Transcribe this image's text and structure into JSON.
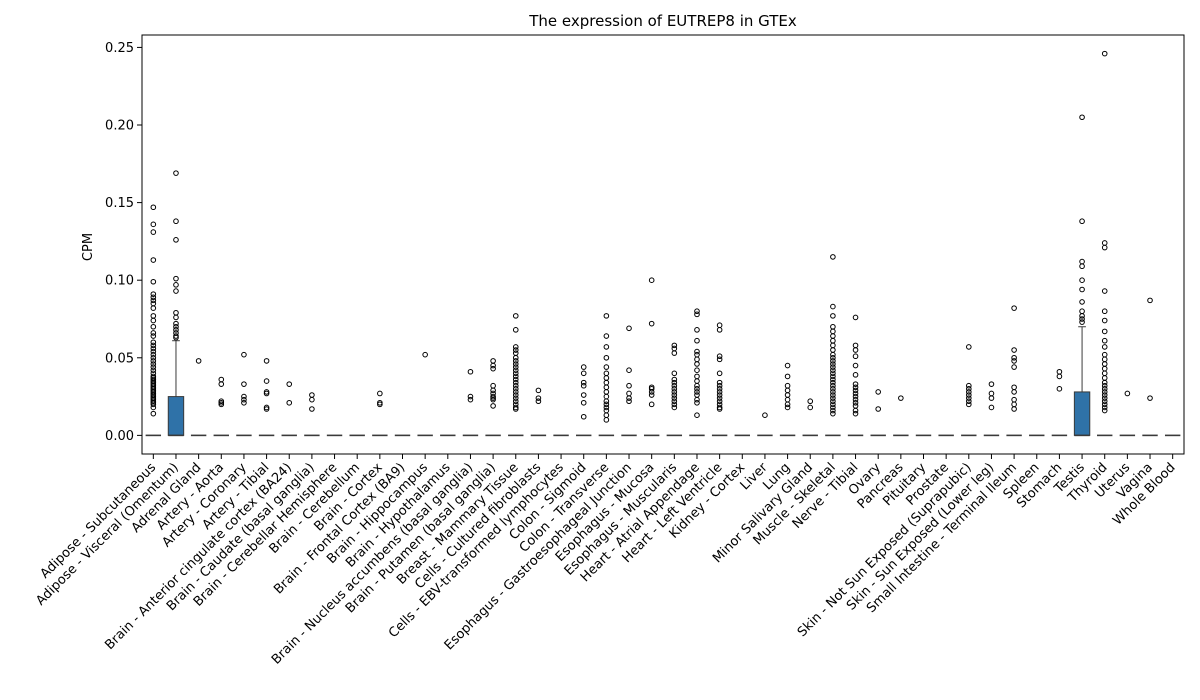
{
  "chart_data": {
    "type": "box",
    "title": "The expression of EUTREP8 in GTEx",
    "xlabel": "",
    "ylabel": "CPM",
    "ylim": [
      -0.012,
      0.258
    ],
    "yticks": [
      "0.00",
      "0.05",
      "0.10",
      "0.15",
      "0.20",
      "0.25"
    ],
    "box_color": "#2f72a8",
    "grid": false,
    "categories": [
      "Adipose - Subcutaneous",
      "Adipose - Visceral (Omentum)",
      "Adrenal Gland",
      "Artery - Aorta",
      "Artery - Coronary",
      "Artery - Tibial",
      "Brain - Anterior cingulate cortex (BA24)",
      "Brain - Caudate (basal ganglia)",
      "Brain - Cerebellar Hemisphere",
      "Brain - Cerebellum",
      "Brain - Cortex",
      "Brain - Frontal Cortex (BA9)",
      "Brain - Hippocampus",
      "Brain - Hypothalamus",
      "Brain - Nucleus accumbens (basal ganglia)",
      "Brain - Putamen (basal ganglia)",
      "Breast - Mammary Tissue",
      "Cells - Cultured fibroblasts",
      "Cells - EBV-transformed lymphocytes",
      "Colon - Sigmoid",
      "Colon - Transverse",
      "Esophagus - Gastroesophageal Junction",
      "Esophagus - Mucosa",
      "Esophagus - Muscularis",
      "Heart - Atrial Appendage",
      "Heart - Left Ventricle",
      "Kidney - Cortex",
      "Liver",
      "Lung",
      "Minor Salivary Gland",
      "Muscle - Skeletal",
      "Nerve - Tibial",
      "Ovary",
      "Pancreas",
      "Pituitary",
      "Prostate",
      "Skin - Not Sun Exposed (Suprapubic)",
      "Skin - Sun Exposed (Lower leg)",
      "Small Intestine - Terminal Ileum",
      "Spleen",
      "Stomach",
      "Testis",
      "Thyroid",
      "Uterus",
      "Vagina",
      "Whole Blood"
    ],
    "boxes": [
      {
        "q1": 0,
        "median": 0,
        "q3": 0,
        "whisker_low": 0,
        "whisker_high": 0,
        "outliers": [
          0.147,
          0.136,
          0.131,
          0.113,
          0.099,
          0.091,
          0.089,
          0.087,
          0.085,
          0.082,
          0.077,
          0.074,
          0.07,
          0.066,
          0.064,
          0.06,
          0.058,
          0.056,
          0.054,
          0.052,
          0.05,
          0.048,
          0.046,
          0.044,
          0.042,
          0.04,
          0.038,
          0.037,
          0.036,
          0.035,
          0.034,
          0.033,
          0.032,
          0.031,
          0.03,
          0.029,
          0.028,
          0.027,
          0.026,
          0.025,
          0.024,
          0.023,
          0.022,
          0.021,
          0.02,
          0.018,
          0.014
        ]
      },
      {
        "q1": 0,
        "median": 0,
        "q3": 0.025,
        "whisker_low": 0,
        "whisker_high": 0.061,
        "outliers": [
          0.169,
          0.138,
          0.126,
          0.101,
          0.097,
          0.093,
          0.079,
          0.076,
          0.072,
          0.07,
          0.068,
          0.066,
          0.064,
          0.063
        ]
      },
      {
        "q1": 0,
        "median": 0,
        "q3": 0,
        "whisker_low": 0,
        "whisker_high": 0,
        "outliers": [
          0.048
        ]
      },
      {
        "q1": 0,
        "median": 0,
        "q3": 0,
        "whisker_low": 0,
        "whisker_high": 0,
        "outliers": [
          0.036,
          0.033,
          0.022,
          0.021,
          0.02
        ]
      },
      {
        "q1": 0,
        "median": 0,
        "q3": 0,
        "whisker_low": 0,
        "whisker_high": 0,
        "outliers": [
          0.052,
          0.033,
          0.025,
          0.023,
          0.021
        ]
      },
      {
        "q1": 0,
        "median": 0,
        "q3": 0,
        "whisker_low": 0,
        "whisker_high": 0,
        "outliers": [
          0.048,
          0.035,
          0.028,
          0.027,
          0.018,
          0.017
        ]
      },
      {
        "q1": 0,
        "median": 0,
        "q3": 0,
        "whisker_low": 0,
        "whisker_high": 0,
        "outliers": [
          0.033,
          0.021
        ]
      },
      {
        "q1": 0,
        "median": 0,
        "q3": 0,
        "whisker_low": 0,
        "whisker_high": 0,
        "outliers": [
          0.026,
          0.023,
          0.017
        ]
      },
      {
        "q1": 0,
        "median": 0,
        "q3": 0,
        "whisker_low": 0,
        "whisker_high": 0,
        "outliers": []
      },
      {
        "q1": 0,
        "median": 0,
        "q3": 0,
        "whisker_low": 0,
        "whisker_high": 0,
        "outliers": []
      },
      {
        "q1": 0,
        "median": 0,
        "q3": 0,
        "whisker_low": 0,
        "whisker_high": 0,
        "outliers": [
          0.027,
          0.021,
          0.02
        ]
      },
      {
        "q1": 0,
        "median": 0,
        "q3": 0,
        "whisker_low": 0,
        "whisker_high": 0,
        "outliers": []
      },
      {
        "q1": 0,
        "median": 0,
        "q3": 0,
        "whisker_low": 0,
        "whisker_high": 0,
        "outliers": [
          0.052
        ]
      },
      {
        "q1": 0,
        "median": 0,
        "q3": 0,
        "whisker_low": 0,
        "whisker_high": 0,
        "outliers": []
      },
      {
        "q1": 0,
        "median": 0,
        "q3": 0,
        "whisker_low": 0,
        "whisker_high": 0,
        "outliers": [
          0.041,
          0.025,
          0.023
        ]
      },
      {
        "q1": 0,
        "median": 0,
        "q3": 0,
        "whisker_low": 0,
        "whisker_high": 0,
        "outliers": [
          0.048,
          0.045,
          0.043,
          0.032,
          0.029,
          0.027,
          0.025,
          0.024,
          0.023,
          0.019
        ]
      },
      {
        "q1": 0,
        "median": 0,
        "q3": 0,
        "whisker_low": 0,
        "whisker_high": 0,
        "outliers": [
          0.077,
          0.068,
          0.057,
          0.055,
          0.053,
          0.05,
          0.048,
          0.046,
          0.044,
          0.042,
          0.04,
          0.038,
          0.036,
          0.034,
          0.032,
          0.03,
          0.028,
          0.026,
          0.024,
          0.022,
          0.02,
          0.018,
          0.017
        ]
      },
      {
        "q1": 0,
        "median": 0,
        "q3": 0,
        "whisker_low": 0,
        "whisker_high": 0,
        "outliers": [
          0.029,
          0.024,
          0.022
        ]
      },
      {
        "q1": 0,
        "median": 0,
        "q3": 0,
        "whisker_low": 0,
        "whisker_high": 0,
        "outliers": []
      },
      {
        "q1": 0,
        "median": 0,
        "q3": 0,
        "whisker_low": 0,
        "whisker_high": 0,
        "outliers": [
          0.044,
          0.04,
          0.034,
          0.032,
          0.026,
          0.021,
          0.012
        ]
      },
      {
        "q1": 0,
        "median": 0,
        "q3": 0,
        "whisker_low": 0,
        "whisker_high": 0,
        "outliers": [
          0.077,
          0.064,
          0.057,
          0.05,
          0.044,
          0.04,
          0.037,
          0.034,
          0.031,
          0.028,
          0.025,
          0.022,
          0.02,
          0.018,
          0.016,
          0.013,
          0.01
        ]
      },
      {
        "q1": 0,
        "median": 0,
        "q3": 0,
        "whisker_low": 0,
        "whisker_high": 0,
        "outliers": [
          0.069,
          0.042,
          0.032,
          0.027,
          0.024,
          0.022
        ]
      },
      {
        "q1": 0,
        "median": 0,
        "q3": 0,
        "whisker_low": 0,
        "whisker_high": 0,
        "outliers": [
          0.1,
          0.072,
          0.031,
          0.03,
          0.028,
          0.026,
          0.02
        ]
      },
      {
        "q1": 0,
        "median": 0,
        "q3": 0,
        "whisker_low": 0,
        "whisker_high": 0,
        "outliers": [
          0.058,
          0.056,
          0.053,
          0.04,
          0.036,
          0.034,
          0.032,
          0.03,
          0.028,
          0.026,
          0.024,
          0.022,
          0.02,
          0.018
        ]
      },
      {
        "q1": 0,
        "median": 0,
        "q3": 0,
        "whisker_low": 0,
        "whisker_high": 0,
        "outliers": [
          0.08,
          0.078,
          0.068,
          0.061,
          0.054,
          0.052,
          0.049,
          0.046,
          0.042,
          0.038,
          0.035,
          0.032,
          0.03,
          0.028,
          0.026,
          0.023,
          0.021,
          0.013
        ]
      },
      {
        "q1": 0,
        "median": 0,
        "q3": 0,
        "whisker_low": 0,
        "whisker_high": 0,
        "outliers": [
          0.071,
          0.068,
          0.051,
          0.049,
          0.04,
          0.034,
          0.032,
          0.03,
          0.028,
          0.026,
          0.024,
          0.022,
          0.02,
          0.018,
          0.017
        ]
      },
      {
        "q1": 0,
        "median": 0,
        "q3": 0,
        "whisker_low": 0,
        "whisker_high": 0,
        "outliers": []
      },
      {
        "q1": 0,
        "median": 0,
        "q3": 0,
        "whisker_low": 0,
        "whisker_high": 0,
        "outliers": [
          0.013
        ]
      },
      {
        "q1": 0,
        "median": 0,
        "q3": 0,
        "whisker_low": 0,
        "whisker_high": 0,
        "outliers": [
          0.045,
          0.038,
          0.032,
          0.029,
          0.026,
          0.023,
          0.02,
          0.018
        ]
      },
      {
        "q1": 0,
        "median": 0,
        "q3": 0,
        "whisker_low": 0,
        "whisker_high": 0,
        "outliers": [
          0.022,
          0.018
        ]
      },
      {
        "q1": 0,
        "median": 0,
        "q3": 0,
        "whisker_low": 0,
        "whisker_high": 0,
        "outliers": [
          0.115,
          0.083,
          0.077,
          0.07,
          0.067,
          0.064,
          0.061,
          0.058,
          0.055,
          0.052,
          0.05,
          0.048,
          0.046,
          0.044,
          0.042,
          0.04,
          0.038,
          0.036,
          0.034,
          0.032,
          0.03,
          0.028,
          0.026,
          0.024,
          0.022,
          0.02,
          0.018,
          0.016,
          0.014
        ]
      },
      {
        "q1": 0,
        "median": 0,
        "q3": 0,
        "whisker_low": 0,
        "whisker_high": 0,
        "outliers": [
          0.076,
          0.058,
          0.055,
          0.051,
          0.045,
          0.039,
          0.033,
          0.031,
          0.029,
          0.027,
          0.025,
          0.023,
          0.021,
          0.019,
          0.016,
          0.014
        ]
      },
      {
        "q1": 0,
        "median": 0,
        "q3": 0,
        "whisker_low": 0,
        "whisker_high": 0,
        "outliers": [
          0.028,
          0.017
        ]
      },
      {
        "q1": 0,
        "median": 0,
        "q3": 0,
        "whisker_low": 0,
        "whisker_high": 0,
        "outliers": [
          0.024
        ]
      },
      {
        "q1": 0,
        "median": 0,
        "q3": 0,
        "whisker_low": 0,
        "whisker_high": 0,
        "outliers": []
      },
      {
        "q1": 0,
        "median": 0,
        "q3": 0,
        "whisker_low": 0,
        "whisker_high": 0,
        "outliers": []
      },
      {
        "q1": 0,
        "median": 0,
        "q3": 0,
        "whisker_low": 0,
        "whisker_high": 0,
        "outliers": [
          0.057,
          0.032,
          0.03,
          0.028,
          0.026,
          0.024,
          0.022,
          0.02
        ]
      },
      {
        "q1": 0,
        "median": 0,
        "q3": 0,
        "whisker_low": 0,
        "whisker_high": 0,
        "outliers": [
          0.033,
          0.027,
          0.024,
          0.018
        ]
      },
      {
        "q1": 0,
        "median": 0,
        "q3": 0,
        "whisker_low": 0,
        "whisker_high": 0,
        "outliers": [
          0.082,
          0.055,
          0.05,
          0.048,
          0.044,
          0.031,
          0.028,
          0.023,
          0.02,
          0.017
        ]
      },
      {
        "q1": 0,
        "median": 0,
        "q3": 0,
        "whisker_low": 0,
        "whisker_high": 0,
        "outliers": []
      },
      {
        "q1": 0,
        "median": 0,
        "q3": 0,
        "whisker_low": 0,
        "whisker_high": 0,
        "outliers": [
          0.041,
          0.038,
          0.03
        ]
      },
      {
        "q1": 0,
        "median": 0,
        "q3": 0.028,
        "whisker_low": 0,
        "whisker_high": 0.07,
        "outliers": [
          0.205,
          0.138,
          0.112,
          0.109,
          0.1,
          0.094,
          0.086,
          0.08,
          0.077,
          0.075,
          0.073
        ]
      },
      {
        "q1": 0,
        "median": 0,
        "q3": 0,
        "whisker_low": 0,
        "whisker_high": 0,
        "outliers": [
          0.246,
          0.124,
          0.121,
          0.093,
          0.08,
          0.074,
          0.067,
          0.061,
          0.057,
          0.052,
          0.049,
          0.046,
          0.043,
          0.04,
          0.037,
          0.034,
          0.032,
          0.03,
          0.028,
          0.026,
          0.024,
          0.022,
          0.02,
          0.018,
          0.016
        ]
      },
      {
        "q1": 0,
        "median": 0,
        "q3": 0,
        "whisker_low": 0,
        "whisker_high": 0,
        "outliers": [
          0.027
        ]
      },
      {
        "q1": 0,
        "median": 0,
        "q3": 0,
        "whisker_low": 0,
        "whisker_high": 0,
        "outliers": [
          0.087,
          0.024
        ]
      },
      {
        "q1": 0,
        "median": 0,
        "q3": 0,
        "whisker_low": 0,
        "whisker_high": 0,
        "outliers": []
      }
    ]
  }
}
